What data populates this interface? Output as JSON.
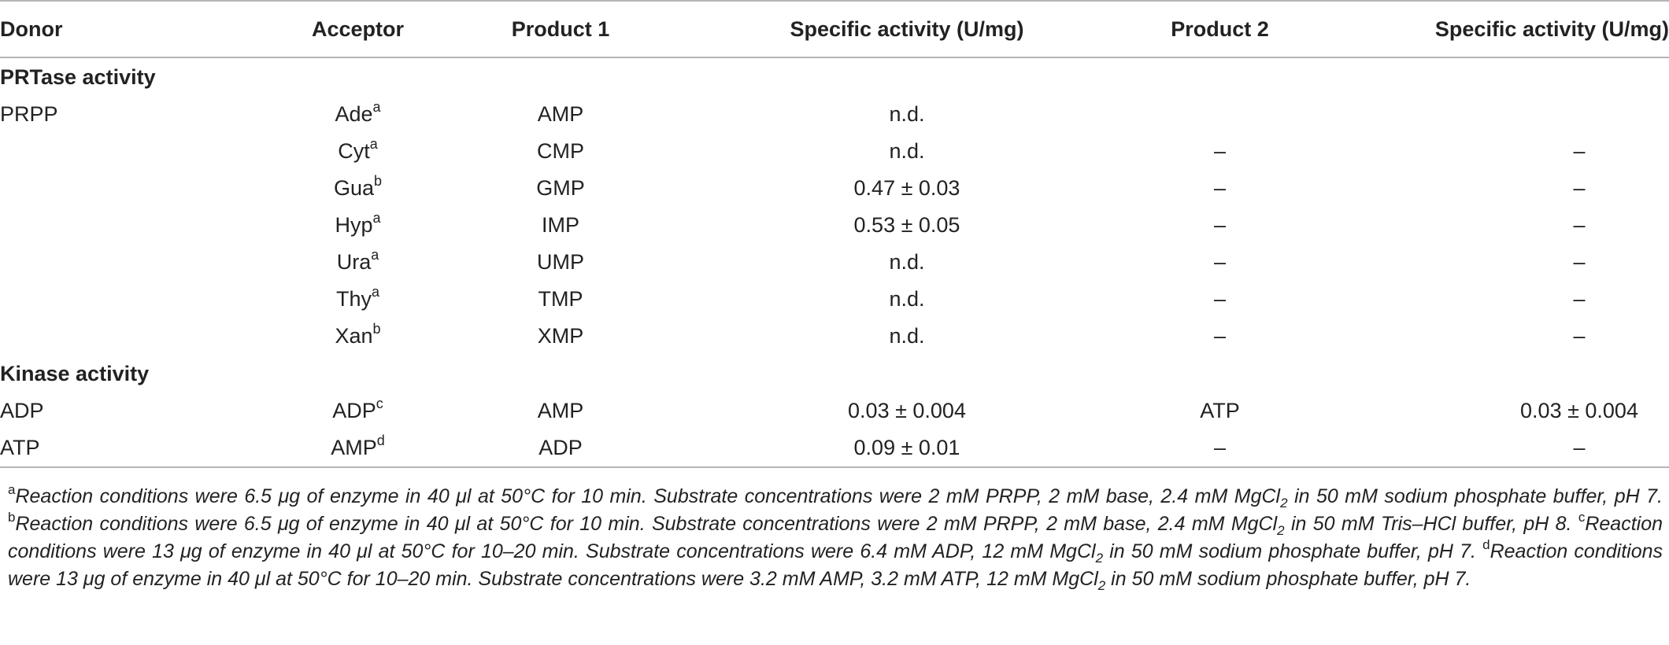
{
  "table": {
    "headers": [
      "Donor",
      "Acceptor",
      "Product 1",
      "Specific activity (U/mg)",
      "Product 2",
      "Specific activity (U/mg)"
    ],
    "sections": [
      {
        "title": "PRTase activity",
        "rows": [
          {
            "donor": "PRPP",
            "acceptor": "Ade",
            "sup": "a",
            "product1": "AMP",
            "activity1": "n.d.",
            "product2": "",
            "activity2": ""
          },
          {
            "donor": "",
            "acceptor": "Cyt",
            "sup": "a",
            "product1": "CMP",
            "activity1": "n.d.",
            "product2": "–",
            "activity2": "–"
          },
          {
            "donor": "",
            "acceptor": "Gua",
            "sup": "b",
            "product1": "GMP",
            "activity1": "0.47 ± 0.03",
            "product2": "–",
            "activity2": "–"
          },
          {
            "donor": "",
            "acceptor": "Hyp",
            "sup": "a",
            "product1": "IMP",
            "activity1": "0.53 ± 0.05",
            "product2": "–",
            "activity2": "–"
          },
          {
            "donor": "",
            "acceptor": "Ura",
            "sup": "a",
            "product1": "UMP",
            "activity1": "n.d.",
            "product2": "–",
            "activity2": "–"
          },
          {
            "donor": "",
            "acceptor": "Thy",
            "sup": "a",
            "product1": "TMP",
            "activity1": "n.d.",
            "product2": "–",
            "activity2": "–"
          },
          {
            "donor": "",
            "acceptor": "Xan",
            "sup": "b",
            "product1": "XMP",
            "activity1": "n.d.",
            "product2": "–",
            "activity2": "–"
          }
        ]
      },
      {
        "title": "Kinase activity",
        "rows": [
          {
            "donor": "ADP",
            "acceptor": "ADP",
            "sup": "c",
            "product1": "AMP",
            "activity1": "0.03 ± 0.004",
            "product2": "ATP",
            "activity2": "0.03 ± 0.004"
          },
          {
            "donor": "ATP",
            "acceptor": "AMP",
            "sup": "d",
            "product1": "ADP",
            "activity1": "0.09 ± 0.01",
            "product2": "–",
            "activity2": "–"
          }
        ]
      }
    ]
  },
  "footnotes": [
    {
      "mark": "a",
      "parts": [
        "Reaction conditions were 6.5 μg of enzyme in 40 μl at 50°C for 10 min. Substrate concentrations were 2 mM PRPP, 2 mM base, 2.4 mM MgCl",
        "2",
        " in 50 mM sodium phosphate buffer, pH 7. "
      ]
    },
    {
      "mark": "b",
      "parts": [
        "Reaction conditions were 6.5 μg of enzyme in 40 μl at 50°C for 10 min. Substrate concentrations were 2 mM PRPP, 2 mM base, 2.4 mM MgCl",
        "2",
        " in 50 mM Tris–HCl buffer, pH 8. "
      ]
    },
    {
      "mark": "c",
      "parts": [
        "Reaction conditions were 13 μg of enzyme in 40 μl at 50°C for 10–20 min. Substrate concentrations were 6.4 mM ADP, 12 mM MgCl",
        "2",
        " in 50 mM sodium phosphate buffer, pH 7. "
      ]
    },
    {
      "mark": "d",
      "parts": [
        "Reaction conditions were 13 μg of enzyme in 40 μl at 50°C for 10–20 min. Substrate concentrations were 3.2 mM AMP, 3.2 mM ATP, 12 mM MgCl",
        "2",
        " in 50 mM sodium phosphate buffer, pH 7."
      ]
    }
  ]
}
